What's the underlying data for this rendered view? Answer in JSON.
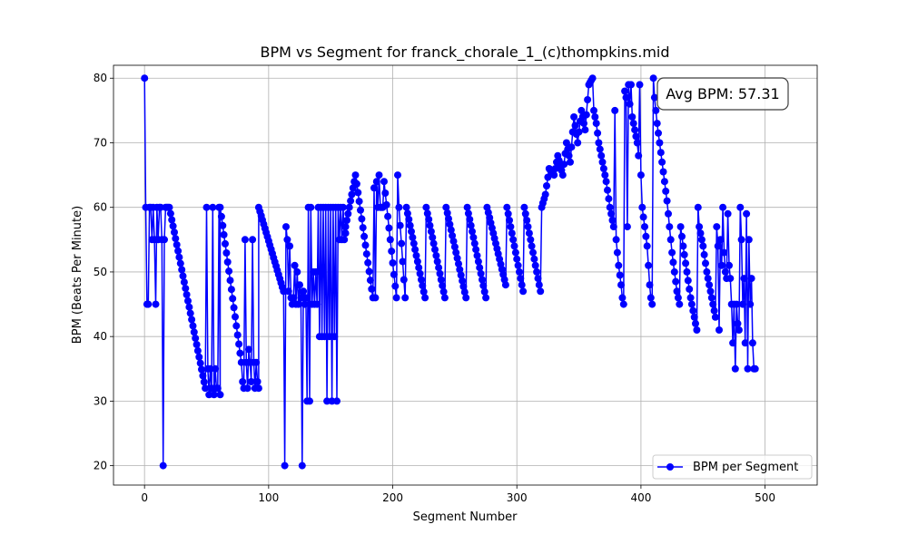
{
  "chart_data": {
    "type": "line",
    "title": "BPM vs Segment for franck_chorale_1_(c)thompkins.mid",
    "xlabel": "Segment Number",
    "ylabel": "BPM (Beats Per Minute)",
    "xlim": [
      -25,
      542
    ],
    "ylim": [
      17,
      82
    ],
    "xticks": [
      0,
      100,
      200,
      300,
      400,
      500
    ],
    "yticks": [
      20,
      30,
      40,
      50,
      60,
      70,
      80
    ],
    "grid": true,
    "legend_position": "bottom-right",
    "annotation": "Avg BPM: 57.31",
    "series": [
      {
        "name": "BPM per Segment",
        "color": "#0000ff",
        "marker": "circle",
        "anchors": [
          [
            0,
            80
          ],
          [
            1,
            60
          ],
          [
            2,
            45
          ],
          [
            3,
            45
          ],
          [
            4,
            60
          ],
          [
            5,
            60
          ],
          [
            6,
            55
          ],
          [
            7,
            60
          ],
          [
            8,
            55
          ],
          [
            9,
            45
          ],
          [
            10,
            60
          ],
          [
            11,
            55
          ],
          [
            12,
            60
          ],
          [
            13,
            60
          ],
          [
            14,
            55
          ],
          [
            15,
            20
          ],
          [
            16,
            55
          ],
          [
            17,
            60
          ],
          [
            18,
            60
          ],
          [
            19,
            60
          ],
          [
            20,
            60
          ],
          [
            49,
            32
          ],
          [
            50,
            60
          ],
          [
            51,
            35
          ],
          [
            52,
            31
          ],
          [
            53,
            35
          ],
          [
            54,
            32
          ],
          [
            55,
            60
          ],
          [
            56,
            31
          ],
          [
            57,
            35
          ],
          [
            58,
            32
          ],
          [
            59,
            32
          ],
          [
            60,
            60
          ],
          [
            61,
            31
          ],
          [
            61,
            60
          ],
          [
            78,
            36
          ],
          [
            79,
            33
          ],
          [
            80,
            32
          ],
          [
            81,
            55
          ],
          [
            82,
            36
          ],
          [
            83,
            32
          ],
          [
            84,
            38
          ],
          [
            85,
            36
          ],
          [
            86,
            33
          ],
          [
            87,
            55
          ],
          [
            88,
            36
          ],
          [
            89,
            32
          ],
          [
            90,
            36
          ],
          [
            91,
            33
          ],
          [
            92,
            32
          ],
          [
            92,
            60
          ],
          [
            112,
            47
          ],
          [
            113,
            20
          ],
          [
            114,
            57
          ],
          [
            115,
            55
          ],
          [
            116,
            47
          ],
          [
            117,
            54
          ],
          [
            118,
            46
          ],
          [
            119,
            45
          ],
          [
            120,
            46
          ],
          [
            121,
            51
          ],
          [
            122,
            45
          ],
          [
            123,
            50
          ],
          [
            124,
            45
          ],
          [
            125,
            48
          ],
          [
            126,
            46
          ],
          [
            127,
            20
          ],
          [
            128,
            47
          ],
          [
            129,
            45
          ],
          [
            130,
            46
          ],
          [
            131,
            30
          ],
          [
            132,
            60
          ],
          [
            133,
            30
          ],
          [
            134,
            60
          ],
          [
            135,
            45
          ],
          [
            136,
            50
          ],
          [
            137,
            45
          ],
          [
            138,
            50
          ],
          [
            139,
            45
          ],
          [
            140,
            60
          ],
          [
            141,
            40
          ],
          [
            142,
            60
          ],
          [
            143,
            40
          ],
          [
            144,
            60
          ],
          [
            145,
            40
          ],
          [
            146,
            60
          ],
          [
            147,
            30
          ],
          [
            148,
            60
          ],
          [
            149,
            40
          ],
          [
            150,
            60
          ],
          [
            151,
            30
          ],
          [
            152,
            60
          ],
          [
            153,
            40
          ],
          [
            154,
            60
          ],
          [
            155,
            30
          ],
          [
            156,
            60
          ],
          [
            157,
            55
          ],
          [
            158,
            60
          ],
          [
            159,
            55
          ],
          [
            160,
            60
          ],
          [
            161,
            55
          ],
          [
            162,
            56
          ],
          [
            162,
            57
          ],
          [
            170,
            65
          ],
          [
            184,
            46
          ],
          [
            185,
            63
          ],
          [
            186,
            46
          ],
          [
            187,
            64
          ],
          [
            188,
            60
          ],
          [
            189,
            65
          ],
          [
            190,
            60
          ],
          [
            192,
            60
          ],
          [
            193,
            64
          ],
          [
            203,
            46
          ],
          [
            204,
            65
          ],
          [
            205,
            60
          ],
          [
            210,
            46
          ],
          [
            211,
            60
          ],
          [
            226,
            46
          ],
          [
            227,
            60
          ],
          [
            242,
            46
          ],
          [
            243,
            60
          ],
          [
            259,
            46
          ],
          [
            260,
            60
          ],
          [
            275,
            46
          ],
          [
            276,
            60
          ],
          [
            291,
            48
          ],
          [
            292,
            60
          ],
          [
            305,
            47
          ],
          [
            306,
            60
          ],
          [
            319,
            47
          ],
          [
            320,
            60
          ],
          [
            323,
            62
          ],
          [
            326,
            66
          ],
          [
            330,
            65
          ],
          [
            333,
            68
          ],
          [
            337,
            65
          ],
          [
            340,
            70
          ],
          [
            343,
            67
          ],
          [
            346,
            74
          ],
          [
            349,
            70
          ],
          [
            352,
            75
          ],
          [
            355,
            72
          ],
          [
            358,
            79
          ],
          [
            361,
            80
          ],
          [
            362,
            75
          ],
          [
            364,
            73
          ],
          [
            366,
            70
          ],
          [
            369,
            67
          ],
          [
            372,
            64
          ],
          [
            375,
            60
          ],
          [
            378,
            57
          ],
          [
            379,
            75
          ],
          [
            380,
            55
          ],
          [
            382,
            51
          ],
          [
            384,
            48
          ],
          [
            385,
            46
          ],
          [
            386,
            45
          ],
          [
            387,
            78
          ],
          [
            388,
            77
          ],
          [
            389,
            57
          ],
          [
            390,
            79
          ],
          [
            391,
            76
          ],
          [
            392,
            79
          ],
          [
            393,
            74
          ],
          [
            395,
            72
          ],
          [
            397,
            70
          ],
          [
            398,
            68
          ],
          [
            399,
            79
          ],
          [
            400,
            65
          ],
          [
            401,
            60
          ],
          [
            403,
            57
          ],
          [
            405,
            54
          ],
          [
            406,
            51
          ],
          [
            407,
            48
          ],
          [
            408,
            46
          ],
          [
            409,
            45
          ],
          [
            410,
            80
          ],
          [
            411,
            77
          ],
          [
            413,
            73
          ],
          [
            415,
            70
          ],
          [
            417,
            67
          ],
          [
            419,
            64
          ],
          [
            421,
            61
          ],
          [
            423,
            57
          ],
          [
            425,
            53
          ],
          [
            427,
            50
          ],
          [
            429,
            47
          ],
          [
            431,
            45
          ],
          [
            432,
            57
          ],
          [
            434,
            54
          ],
          [
            437,
            50
          ],
          [
            440,
            46
          ],
          [
            443,
            43
          ],
          [
            445,
            41
          ],
          [
            446,
            60
          ],
          [
            447,
            57
          ],
          [
            450,
            54
          ],
          [
            453,
            50
          ],
          [
            456,
            47
          ],
          [
            458,
            45
          ],
          [
            459,
            44
          ],
          [
            460,
            43
          ],
          [
            461,
            57
          ],
          [
            462,
            54
          ],
          [
            463,
            41
          ],
          [
            464,
            55
          ],
          [
            465,
            51
          ],
          [
            466,
            60
          ],
          [
            467,
            53
          ],
          [
            468,
            50
          ],
          [
            469,
            49
          ],
          [
            470,
            59
          ],
          [
            471,
            51
          ],
          [
            472,
            49
          ],
          [
            473,
            45
          ],
          [
            474,
            39
          ],
          [
            475,
            45
          ],
          [
            476,
            35
          ],
          [
            477,
            45
          ],
          [
            478,
            42
          ],
          [
            479,
            41
          ],
          [
            480,
            60
          ],
          [
            481,
            55
          ],
          [
            482,
            45
          ],
          [
            483,
            49
          ],
          [
            484,
            39
          ],
          [
            485,
            59
          ],
          [
            486,
            35
          ],
          [
            487,
            55
          ],
          [
            488,
            45
          ],
          [
            489,
            49
          ],
          [
            490,
            39
          ],
          [
            491,
            35
          ],
          [
            492,
            35
          ]
        ]
      }
    ]
  }
}
